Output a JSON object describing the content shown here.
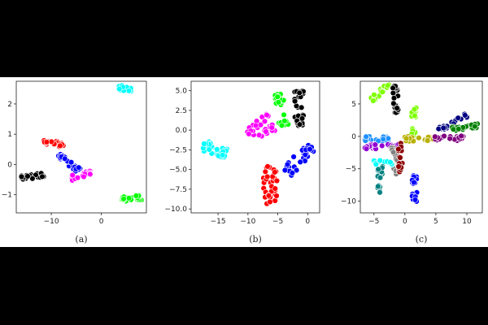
{
  "chart_data": [
    {
      "type": "scatter",
      "caption": "(a)",
      "xlim": [
        -17,
        9
      ],
      "ylim": [
        -1.6,
        2.75
      ],
      "xticks": [
        -10,
        0
      ],
      "xtick_labels": [
        "−10",
        "0"
      ],
      "yticks": [
        2,
        1,
        0,
        -1
      ],
      "ytick_labels": [
        "2",
        "1",
        "0",
        "−1"
      ],
      "clusters": [
        {
          "color": "#00ffff",
          "shape": "dumbbell",
          "x0": 3.5,
          "y0": 2.55,
          "x1": 6.0,
          "y1": 2.45,
          "w": 0.35,
          "n": 26
        },
        {
          "color": "#ff0000",
          "shape": "dumbbell",
          "x0": -11.5,
          "y0": 0.75,
          "x1": -7.5,
          "y1": 0.65,
          "w": 0.3,
          "n": 32
        },
        {
          "color": "#0000ff",
          "shape": "dumbbell",
          "x0": -8.5,
          "y0": 0.3,
          "x1": -4.5,
          "y1": -0.2,
          "w": 0.3,
          "n": 32
        },
        {
          "color": "#ff00ff",
          "shape": "dumbbell",
          "x0": -6.0,
          "y0": -0.45,
          "x1": -2.0,
          "y1": -0.25,
          "w": 0.35,
          "n": 32
        },
        {
          "color": "#000000",
          "shape": "dumbbell",
          "x0": -16.0,
          "y0": -0.45,
          "x1": -11.5,
          "y1": -0.35,
          "w": 0.35,
          "n": 32
        },
        {
          "color": "#00ff00",
          "shape": "dumbbell",
          "x0": 4.0,
          "y0": -1.15,
          "x1": 8.0,
          "y1": -1.1,
          "w": 0.3,
          "n": 32
        }
      ]
    },
    {
      "type": "scatter",
      "caption": "(b)",
      "xlim": [
        -19.5,
        2
      ],
      "ylim": [
        -10.5,
        6.2
      ],
      "xticks": [
        -15,
        -10,
        -5,
        0
      ],
      "xtick_labels": [
        "−15",
        "−10",
        "−5",
        "0"
      ],
      "yticks": [
        5,
        2.5,
        0,
        -2.5,
        -5,
        -7.5,
        -10
      ],
      "ytick_labels": [
        "5.0",
        "2.5",
        "0.0",
        "−2.5",
        "−5.0",
        "−7.5",
        "−10.0"
      ],
      "clusters": [
        {
          "color": "#00ffff",
          "shape": "dumbbell",
          "x0": -17.5,
          "y0": -2.0,
          "x1": -13.5,
          "y1": -3.0,
          "w": 1.0,
          "n": 34
        },
        {
          "color": "#ff00ff",
          "shape": "blob",
          "x0": -10.5,
          "y0": -0.3,
          "x1": -6.0,
          "y1": 1.0,
          "w": 1.6,
          "n": 34
        },
        {
          "color": "#00ff00",
          "shape": "dumbbell",
          "x0": -5.0,
          "y0": 4.6,
          "x1": -4.0,
          "y1": 0.5,
          "w": 0.8,
          "n": 30
        },
        {
          "color": "#000000",
          "shape": "dumbbell",
          "x0": -1.5,
          "y0": 5.0,
          "x1": -1.5,
          "y1": 0.5,
          "w": 0.8,
          "n": 32
        },
        {
          "color": "#ff0000",
          "shape": "blob",
          "x0": -6.5,
          "y0": -4.5,
          "x1": -6.0,
          "y1": -9.5,
          "w": 1.2,
          "n": 34
        },
        {
          "color": "#0000ff",
          "shape": "dumbbell",
          "x0": -3.5,
          "y0": -5.5,
          "x1": 0.5,
          "y1": -2.0,
          "w": 1.0,
          "n": 34
        }
      ]
    },
    {
      "type": "scatter",
      "caption": "(c)",
      "xlim": [
        -7.2,
        12.5
      ],
      "ylim": [
        -11.8,
        8.5
      ],
      "xticks": [
        -5,
        0,
        5,
        10
      ],
      "xtick_labels": [
        "−5",
        "0",
        "5",
        "10"
      ],
      "yticks": [
        5,
        0,
        -5,
        -10
      ],
      "ytick_labels": [
        "5",
        "0",
        "−5",
        "−10"
      ],
      "clusters": [
        {
          "color": "#7fff00",
          "shape": "dumbbell",
          "x0": -5.5,
          "y0": 5.5,
          "x1": -2.5,
          "y1": 8.0,
          "w": 0.3,
          "n": 28
        },
        {
          "color": "#000000",
          "shape": "dumbbell",
          "x0": -1.6,
          "y0": 8.0,
          "x1": -1.4,
          "y1": 3.5,
          "w": 0.3,
          "n": 24
        },
        {
          "color": "#7fff00",
          "shape": "dumbbell",
          "x0": 1.5,
          "y0": 4.5,
          "x1": 1.3,
          "y1": 0.0,
          "w": 0.3,
          "n": 22
        },
        {
          "color": "#1e90ff",
          "shape": "dumbbell",
          "x0": -6.5,
          "y0": -0.4,
          "x1": -2.5,
          "y1": -0.4,
          "w": 0.25,
          "n": 26
        },
        {
          "color": "#9400d3",
          "shape": "dumbbell",
          "x0": -6.5,
          "y0": -1.6,
          "x1": -0.5,
          "y1": -1.5,
          "w": 0.25,
          "n": 30
        },
        {
          "color": "#808080",
          "shape": "dumbbell",
          "x0": -1.8,
          "y0": -1.5,
          "x1": -1.5,
          "y1": -6.0,
          "w": 0.3,
          "n": 22
        },
        {
          "color": "#8b0000",
          "shape": "dumbbell",
          "x0": -0.8,
          "y0": -1.0,
          "x1": -0.8,
          "y1": -5.5,
          "w": 0.3,
          "n": 22
        },
        {
          "color": "#00ffff",
          "shape": "dumbbell",
          "x0": -5.0,
          "y0": -4.0,
          "x1": -2.0,
          "y1": -4.0,
          "w": 0.25,
          "n": 18
        },
        {
          "color": "#008080",
          "shape": "dumbbell",
          "x0": -4.0,
          "y0": -4.5,
          "x1": -4.2,
          "y1": -8.8,
          "w": 0.3,
          "n": 22
        },
        {
          "color": "#0000ff",
          "shape": "dumbbell",
          "x0": 1.6,
          "y0": -6.0,
          "x1": 1.5,
          "y1": -10.5,
          "w": 0.3,
          "n": 24
        },
        {
          "color": "#b8b000",
          "shape": "dumbbell",
          "x0": 0.0,
          "y0": -0.4,
          "x1": 5.0,
          "y1": -0.4,
          "w": 0.25,
          "n": 30
        },
        {
          "color": "#800080",
          "shape": "dumbbell",
          "x0": 4.5,
          "y0": -0.3,
          "x1": 9.5,
          "y1": -0.3,
          "w": 0.25,
          "n": 28
        },
        {
          "color": "#000080",
          "shape": "dumbbell",
          "x0": 5.5,
          "y0": 1.0,
          "x1": 10.0,
          "y1": 3.2,
          "w": 0.25,
          "n": 26
        },
        {
          "color": "#008000",
          "shape": "dumbbell",
          "x0": 7.5,
          "y0": 1.2,
          "x1": 12.0,
          "y1": 1.6,
          "w": 0.25,
          "n": 26
        }
      ]
    }
  ]
}
